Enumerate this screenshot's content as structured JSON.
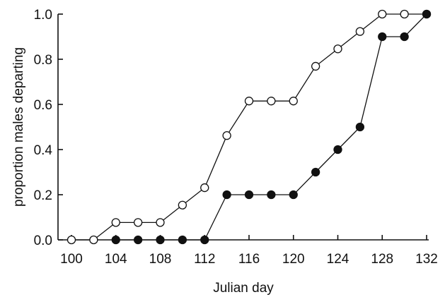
{
  "chart_data": {
    "type": "line",
    "title": "",
    "xlabel": "Julian day",
    "ylabel": "proportion males departing",
    "xlim": [
      100,
      132
    ],
    "ylim": [
      0.0,
      1.0
    ],
    "xticks": [
      100,
      104,
      108,
      112,
      116,
      120,
      124,
      128,
      132
    ],
    "xtick_labels": [
      "100",
      "104",
      "108",
      "112",
      "116",
      "120",
      "124",
      "128",
      "132"
    ],
    "yticks": [
      0.0,
      0.2,
      0.4,
      0.6,
      0.8,
      1.0
    ],
    "ytick_labels": [
      "0.0",
      "0.2",
      "0.4",
      "0.6",
      "0.8",
      "1.0"
    ],
    "grid": false,
    "series": [
      {
        "marker": "open-circle",
        "color": "#111111",
        "x": [
          100,
          102,
          104,
          106,
          108,
          110,
          112,
          114,
          116,
          118,
          120,
          122,
          124,
          126,
          128,
          130,
          132
        ],
        "y": [
          0.0,
          0.0,
          0.077,
          0.077,
          0.077,
          0.154,
          0.231,
          0.462,
          0.615,
          0.615,
          0.615,
          0.769,
          0.846,
          0.923,
          1.0,
          1.0,
          1.0
        ]
      },
      {
        "marker": "filled-circle",
        "color": "#111111",
        "x": [
          104,
          106,
          108,
          110,
          112,
          114,
          116,
          118,
          120,
          122,
          124,
          126,
          128,
          130,
          132
        ],
        "y": [
          0.0,
          0.0,
          0.0,
          0.0,
          0.0,
          0.2,
          0.2,
          0.2,
          0.2,
          0.3,
          0.4,
          0.5,
          0.9,
          0.9,
          1.0
        ]
      }
    ]
  }
}
